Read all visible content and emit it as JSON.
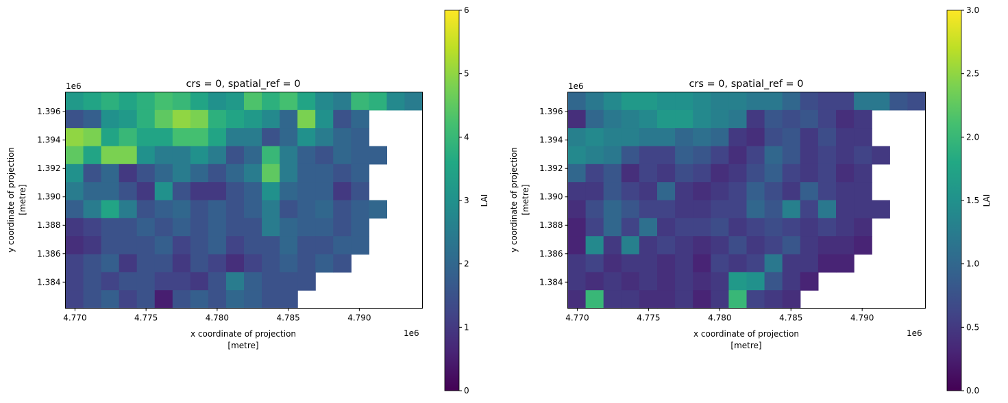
{
  "chart_data": [
    {
      "type": "heatmap",
      "title": "crs = 0, spatial_ref = 0",
      "xlabel": "x coordinate of projection",
      "xlabel_unit": "[metre]",
      "ylabel": "y coordinate of projection",
      "ylabel_unit": "[metre]",
      "x_offset_label": "1e6",
      "y_offset_label": "1e6",
      "xlim": [
        4.76933,
        4.79444
      ],
      "ylim": [
        1.38216,
        1.39738
      ],
      "xticks": [
        "4.770",
        "4.775",
        "4.780",
        "4.785",
        "4.790"
      ],
      "xtick_values": [
        4.77,
        4.775,
        4.78,
        4.785,
        4.79
      ],
      "yticks": [
        "1.384",
        "1.386",
        "1.388",
        "1.390",
        "1.392",
        "1.394",
        "1.396"
      ],
      "ytick_values": [
        1.384,
        1.386,
        1.388,
        1.39,
        1.392,
        1.394,
        1.396
      ],
      "colormap": "viridis",
      "colorbar": {
        "label": "LAI",
        "range": [
          0,
          6
        ],
        "ticks": [
          "0",
          "1",
          "2",
          "3",
          "4",
          "5",
          "6"
        ],
        "tick_values": [
          0,
          1,
          2,
          3,
          4,
          5,
          6
        ]
      },
      "grid": false,
      "values_note_rows_top_to_bottom": true,
      "values": [
        [
          3.2,
          3.5,
          3.8,
          3.5,
          3.8,
          4.2,
          4.0,
          3.5,
          3.0,
          3.2,
          4.3,
          3.8,
          4.2,
          3.5,
          2.8,
          2.5,
          4.0,
          3.8,
          2.8,
          2.5
        ],
        [
          1.5,
          1.8,
          3.0,
          3.2,
          3.8,
          4.5,
          5.0,
          4.8,
          3.8,
          3.5,
          3.2,
          2.8,
          2.0,
          4.8,
          3.0,
          1.5,
          2.0,
          null,
          null,
          null
        ],
        [
          5.0,
          4.8,
          3.5,
          4.0,
          3.5,
          3.5,
          4.2,
          4.2,
          3.5,
          2.5,
          2.5,
          1.5,
          2.0,
          3.0,
          2.5,
          2.0,
          1.8,
          null,
          null,
          null
        ],
        [
          4.5,
          3.5,
          4.8,
          4.8,
          3.0,
          2.5,
          2.5,
          3.0,
          2.5,
          1.5,
          2.0,
          4.0,
          2.5,
          1.8,
          1.5,
          2.0,
          1.8,
          1.8,
          null,
          null
        ],
        [
          3.0,
          1.5,
          2.0,
          1.0,
          1.5,
          2.0,
          2.5,
          2.0,
          1.5,
          2.0,
          2.5,
          4.5,
          2.5,
          1.8,
          1.8,
          1.5,
          1.8,
          null,
          null,
          null
        ],
        [
          2.5,
          2.0,
          2.0,
          1.5,
          1.0,
          3.0,
          1.5,
          1.0,
          1.0,
          1.5,
          1.8,
          3.0,
          2.0,
          1.8,
          1.8,
          1.0,
          1.5,
          null,
          null,
          null
        ],
        [
          1.8,
          2.5,
          3.5,
          2.5,
          1.5,
          1.8,
          2.0,
          1.5,
          1.8,
          1.5,
          1.8,
          2.5,
          1.5,
          1.8,
          2.0,
          1.5,
          1.8,
          2.0,
          null,
          null
        ],
        [
          1.0,
          1.2,
          1.5,
          1.5,
          1.8,
          1.5,
          1.8,
          1.5,
          1.8,
          1.5,
          1.5,
          2.5,
          2.0,
          1.8,
          1.8,
          1.5,
          1.8,
          null,
          null,
          null
        ],
        [
          0.8,
          1.0,
          1.5,
          1.5,
          1.5,
          1.8,
          1.2,
          1.5,
          1.8,
          1.2,
          1.5,
          1.5,
          2.0,
          1.5,
          1.5,
          1.8,
          1.8,
          null,
          null,
          null
        ],
        [
          1.2,
          1.5,
          1.8,
          1.0,
          1.5,
          1.5,
          1.0,
          1.5,
          1.2,
          0.8,
          1.2,
          1.5,
          1.8,
          1.5,
          1.8,
          1.5,
          null,
          null,
          null,
          null
        ],
        [
          1.2,
          1.5,
          1.2,
          1.5,
          1.5,
          1.2,
          1.2,
          1.0,
          1.5,
          2.5,
          1.8,
          1.5,
          1.5,
          1.5,
          null,
          null,
          null,
          null,
          null,
          null
        ],
        [
          1.2,
          1.5,
          1.8,
          1.2,
          1.5,
          0.5,
          1.5,
          1.8,
          1.5,
          2.0,
          1.8,
          1.5,
          1.5,
          null,
          null,
          null,
          null,
          null,
          null,
          null
        ]
      ]
    },
    {
      "type": "heatmap",
      "title": "crs = 0, spatial_ref = 0",
      "xlabel": "x coordinate of projection",
      "xlabel_unit": "[metre]",
      "ylabel": "y coordinate of projection",
      "ylabel_unit": "[metre]",
      "x_offset_label": "1e6",
      "y_offset_label": "1e6",
      "xlim": [
        4.76933,
        4.79444
      ],
      "ylim": [
        1.38216,
        1.39738
      ],
      "xticks": [
        "4.770",
        "4.775",
        "4.780",
        "4.785",
        "4.790"
      ],
      "xtick_values": [
        4.77,
        4.775,
        4.78,
        4.785,
        4.79
      ],
      "yticks": [
        "1.384",
        "1.386",
        "1.388",
        "1.390",
        "1.392",
        "1.394",
        "1.396"
      ],
      "ytick_values": [
        1.384,
        1.386,
        1.388,
        1.39,
        1.392,
        1.394,
        1.396
      ],
      "colormap": "viridis",
      "colorbar": {
        "label": "LAI",
        "range": [
          0,
          3
        ],
        "ticks": [
          "0.0",
          "0.5",
          "1.0",
          "1.5",
          "2.0",
          "2.5",
          "3.0"
        ],
        "tick_values": [
          0,
          0.5,
          1.0,
          1.5,
          2.0,
          2.5,
          3.0
        ]
      },
      "grid": false,
      "values_note_rows_top_to_bottom": true,
      "values": [
        [
          1.0,
          1.2,
          1.4,
          1.6,
          1.6,
          1.5,
          1.5,
          1.4,
          1.3,
          1.3,
          1.2,
          1.2,
          1.0,
          0.7,
          0.6,
          0.6,
          1.2,
          1.2,
          0.8,
          0.7
        ],
        [
          0.4,
          1.0,
          1.2,
          1.3,
          1.4,
          1.6,
          1.6,
          1.4,
          1.3,
          1.2,
          0.5,
          0.8,
          0.7,
          0.8,
          0.6,
          0.4,
          0.5,
          null,
          null,
          null
        ],
        [
          1.3,
          1.4,
          1.3,
          1.3,
          1.2,
          1.2,
          1.0,
          1.1,
          1.0,
          0.5,
          0.4,
          0.7,
          0.8,
          0.5,
          0.7,
          0.5,
          0.5,
          null,
          null,
          null
        ],
        [
          1.4,
          1.3,
          1.2,
          0.8,
          0.6,
          0.6,
          0.9,
          0.8,
          0.6,
          0.4,
          0.6,
          1.0,
          0.8,
          0.5,
          0.6,
          0.5,
          0.6,
          0.5,
          null,
          null
        ],
        [
          1.0,
          0.6,
          0.8,
          0.4,
          0.6,
          0.5,
          0.7,
          0.6,
          0.4,
          0.5,
          0.7,
          0.9,
          0.6,
          0.5,
          0.6,
          0.4,
          0.5,
          null,
          null,
          null
        ],
        [
          0.5,
          0.5,
          0.8,
          0.6,
          0.5,
          1.0,
          0.5,
          0.4,
          0.5,
          0.6,
          0.9,
          0.7,
          0.5,
          0.9,
          0.6,
          0.5,
          0.5,
          null,
          null,
          null
        ],
        [
          0.4,
          0.7,
          1.0,
          0.8,
          0.6,
          0.6,
          0.5,
          0.5,
          0.6,
          0.6,
          1.0,
          0.8,
          1.3,
          0.6,
          1.2,
          0.5,
          0.5,
          0.5,
          null,
          null
        ],
        [
          0.3,
          0.6,
          1.0,
          0.6,
          1.1,
          0.5,
          0.6,
          0.6,
          0.7,
          0.5,
          0.6,
          0.7,
          0.6,
          0.5,
          0.6,
          0.5,
          0.4,
          null,
          null,
          null
        ],
        [
          0.3,
          1.4,
          0.5,
          1.3,
          0.5,
          0.6,
          0.5,
          0.4,
          0.5,
          0.7,
          0.5,
          0.6,
          0.8,
          0.5,
          0.4,
          0.4,
          0.3,
          null,
          null,
          null
        ],
        [
          0.5,
          0.6,
          0.4,
          0.5,
          0.5,
          0.4,
          0.5,
          0.3,
          0.6,
          0.5,
          0.6,
          1.2,
          0.5,
          0.5,
          0.3,
          0.3,
          null,
          null,
          null,
          null
        ],
        [
          0.5,
          0.4,
          0.5,
          0.4,
          0.5,
          0.4,
          0.5,
          0.4,
          0.5,
          1.6,
          1.5,
          0.8,
          0.5,
          0.3,
          null,
          null,
          null,
          null,
          null,
          null
        ],
        [
          0.4,
          2.0,
          0.5,
          0.5,
          0.4,
          0.4,
          0.5,
          0.3,
          0.5,
          2.0,
          0.6,
          0.5,
          0.4,
          null,
          null,
          null,
          null,
          null,
          null,
          null
        ]
      ]
    }
  ]
}
